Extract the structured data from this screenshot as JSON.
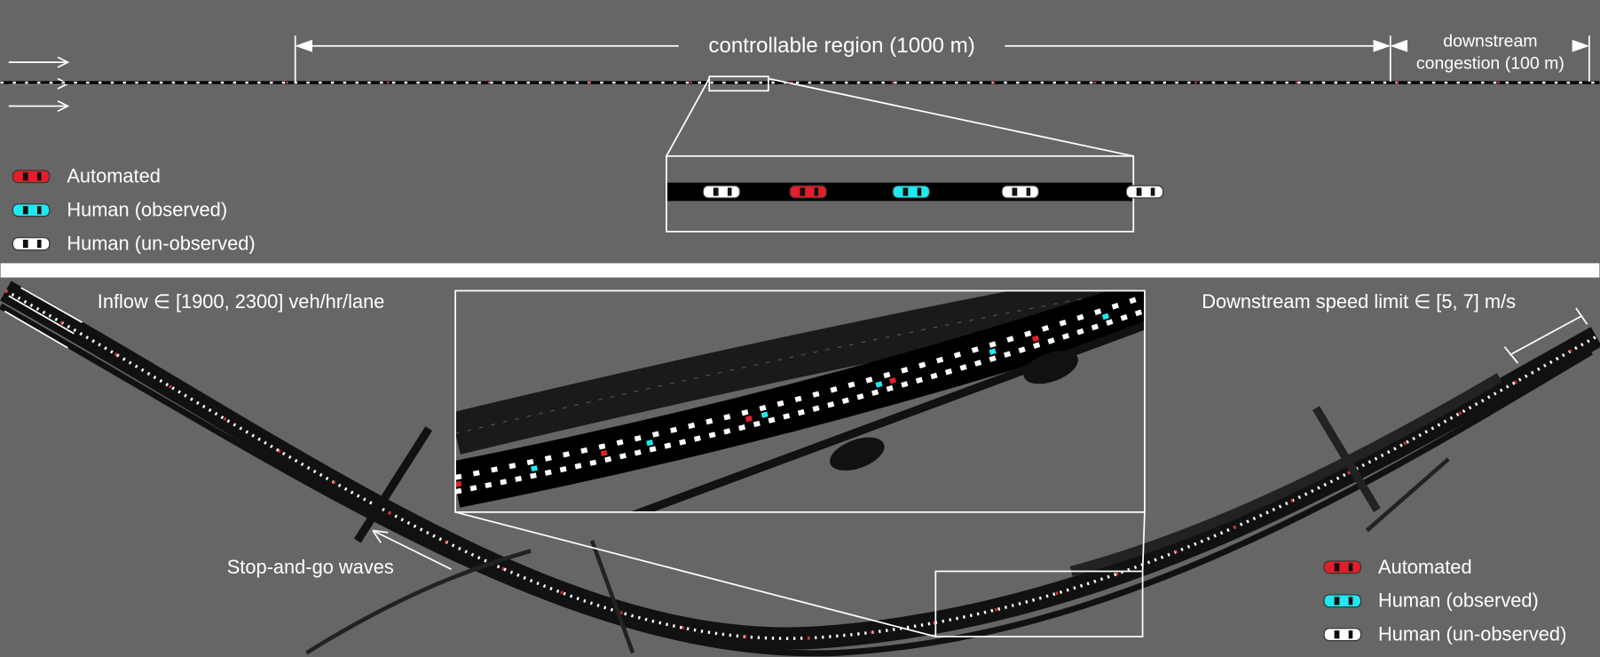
{
  "top": {
    "region_label": "controllable region (1000 m)",
    "downstream_label": [
      "downstream",
      "congestion (100 m)"
    ],
    "legend": [
      "Automated",
      "Human (observed)",
      "Human (un-observed)"
    ]
  },
  "bottom": {
    "inflow_label": "Inflow ∈ [1900, 2300] veh/hr/lane",
    "speed_label": "Downstream speed limit ∈ [5, 7] m/s",
    "waves_label": "Stop-and-go waves",
    "legend": [
      "Automated",
      "Human (observed)",
      "Human (un-observed)"
    ]
  }
}
